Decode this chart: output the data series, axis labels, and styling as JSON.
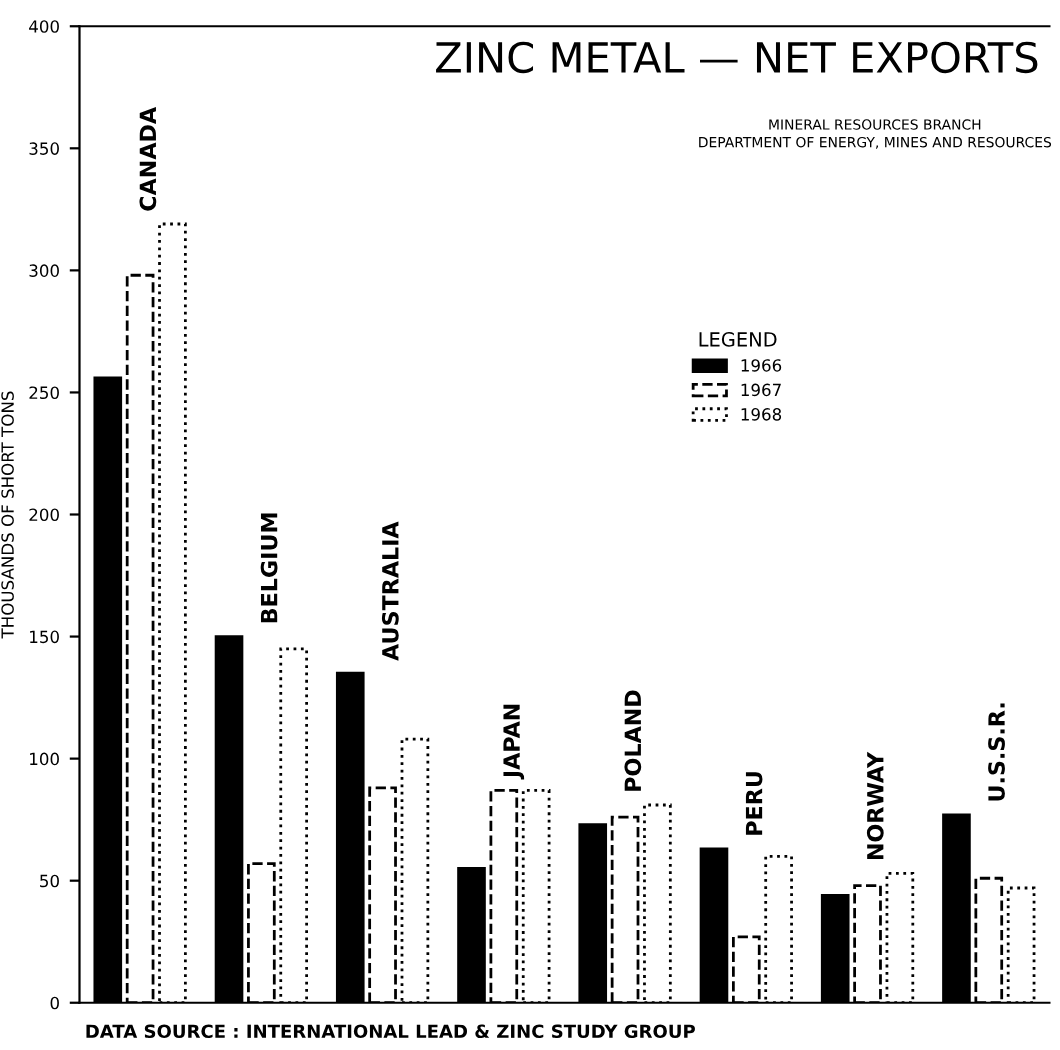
{
  "chart_data": {
    "type": "bar",
    "title": "ZINC METAL — NET EXPORTS",
    "subtitle": "MINERAL RESOURCES BRANCH\nDEPARTMENT OF ENERGY, MINES AND RESOURCES",
    "ylabel": "THOUSANDS OF SHORT TONS",
    "legend_title": "LEGEND",
    "annotations": [
      "DATA SOURCE : INTERNATIONAL LEAD & ZINC STUDY GROUP"
    ],
    "categories": [
      "CANADA",
      "BELGIUM",
      "AUSTRALIA",
      "JAPAN",
      "POLAND",
      "PERU",
      "NORWAY",
      "U.S.S.R."
    ],
    "series": [
      {
        "name": "1966",
        "color": "#000000",
        "line_style": "solid",
        "values": [
          256,
          150,
          135,
          55,
          73,
          63,
          44,
          77
        ]
      },
      {
        "name": "1967",
        "color": "#ffffff",
        "line_style": "dashed",
        "values": [
          298,
          57,
          88,
          87,
          76,
          27,
          48,
          51
        ]
      },
      {
        "name": "1968",
        "color": "#ffffff",
        "line_style": "dotted",
        "values": [
          319,
          145,
          108,
          87,
          81,
          60,
          53,
          47
        ]
      }
    ],
    "ylim": [
      0,
      400
    ],
    "yticks": [
      0,
      50,
      100,
      150,
      200,
      250,
      300,
      350,
      400
    ],
    "grid": false,
    "legend": "right",
    "tick_labels": "y"
  }
}
